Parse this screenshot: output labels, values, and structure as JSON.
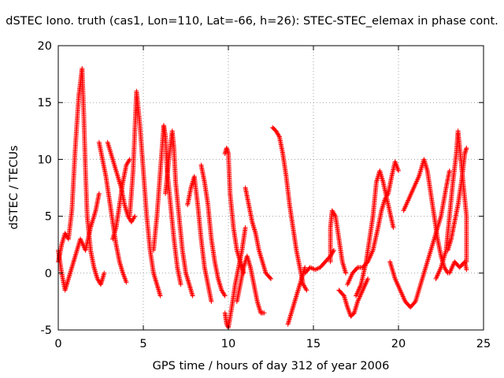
{
  "chart_data": {
    "type": "scatter",
    "title": "dSTEC Iono. truth (cas1, Lon=110, Lat=-66, h=26): STEC-STEC_elemax in phase cont.",
    "xlabel": "GPS time / hours of day 312 of year 2006",
    "ylabel": "dSTEC  / TECUs",
    "xlim": [
      0,
      25
    ],
    "ylim": [
      -5,
      20
    ],
    "xticks": [
      0,
      5,
      10,
      15,
      20,
      25
    ],
    "yticks": [
      -5,
      0,
      5,
      10,
      15,
      20
    ],
    "grid": true,
    "marker": "+",
    "colors": {
      "series": "#ff0000",
      "grid": "#a0a0a0",
      "axes": "#000000"
    },
    "series": [
      {
        "arcs": [
          [
            [
              0.0,
              1.0
            ],
            [
              0.2,
              2.5
            ],
            [
              0.4,
              3.5
            ],
            [
              0.6,
              3.0
            ],
            [
              0.8,
              5.5
            ],
            [
              1.0,
              11.0
            ],
            [
              1.2,
              15.5
            ],
            [
              1.4,
              18.0
            ],
            [
              1.5,
              14.0
            ],
            [
              1.6,
              9.0
            ],
            [
              1.7,
              5.0
            ],
            [
              1.9,
              2.0
            ],
            [
              2.1,
              0.5
            ],
            [
              2.3,
              -0.5
            ],
            [
              2.5,
              -1.0
            ],
            [
              2.7,
              0.0
            ]
          ],
          [
            [
              0.0,
              2.0
            ],
            [
              0.2,
              0.0
            ],
            [
              0.4,
              -1.5
            ],
            [
              0.6,
              -0.5
            ],
            [
              0.8,
              0.5
            ],
            [
              1.0,
              1.5
            ],
            [
              1.3,
              3.0
            ],
            [
              1.6,
              2.0
            ],
            [
              1.9,
              4.0
            ],
            [
              2.2,
              5.5
            ],
            [
              2.4,
              7.0
            ]
          ],
          [
            [
              2.4,
              11.5
            ],
            [
              2.6,
              10.0
            ],
            [
              2.8,
              8.5
            ],
            [
              3.0,
              6.5
            ],
            [
              3.2,
              4.5
            ],
            [
              3.4,
              2.5
            ],
            [
              3.6,
              1.0
            ],
            [
              3.8,
              0.0
            ],
            [
              4.0,
              -0.8
            ]
          ],
          [
            [
              2.9,
              11.5
            ],
            [
              3.2,
              10.0
            ],
            [
              3.5,
              8.5
            ],
            [
              3.7,
              7.5
            ],
            [
              3.9,
              6.0
            ],
            [
              4.1,
              5.0
            ],
            [
              4.3,
              4.5
            ],
            [
              4.5,
              5.0
            ]
          ],
          [
            [
              3.2,
              3.0
            ],
            [
              3.4,
              4.0
            ],
            [
              3.6,
              6.0
            ],
            [
              3.8,
              8.0
            ],
            [
              4.0,
              9.5
            ],
            [
              4.2,
              10.0
            ]
          ],
          [
            [
              4.2,
              5.0
            ],
            [
              4.4,
              9.0
            ],
            [
              4.6,
              16.0
            ],
            [
              4.8,
              13.0
            ],
            [
              5.0,
              9.0
            ],
            [
              5.2,
              5.0
            ],
            [
              5.4,
              2.0
            ],
            [
              5.6,
              0.0
            ],
            [
              5.8,
              -1.0
            ],
            [
              6.0,
              -2.0
            ]
          ],
          [
            [
              5.6,
              2.0
            ],
            [
              5.8,
              5.0
            ],
            [
              6.0,
              9.0
            ],
            [
              6.2,
              13.0
            ],
            [
              6.3,
              12.0
            ],
            [
              6.4,
              9.0
            ],
            [
              6.6,
              6.0
            ],
            [
              6.8,
              3.0
            ],
            [
              7.0,
              0.5
            ],
            [
              7.2,
              -1.0
            ]
          ],
          [
            [
              6.3,
              7.0
            ],
            [
              6.5,
              10.0
            ],
            [
              6.7,
              12.5
            ],
            [
              6.8,
              11.0
            ],
            [
              6.9,
              8.0
            ],
            [
              7.1,
              5.0
            ],
            [
              7.3,
              2.0
            ],
            [
              7.5,
              0.0
            ],
            [
              7.7,
              -1.0
            ],
            [
              7.9,
              -2.0
            ]
          ],
          [
            [
              7.6,
              6.0
            ],
            [
              7.8,
              7.5
            ],
            [
              8.0,
              8.5
            ],
            [
              8.2,
              6.0
            ],
            [
              8.4,
              3.0
            ],
            [
              8.6,
              0.5
            ],
            [
              8.8,
              -1.0
            ],
            [
              9.0,
              -2.5
            ]
          ],
          [
            [
              8.4,
              9.5
            ],
            [
              8.6,
              8.0
            ],
            [
              8.8,
              6.0
            ],
            [
              9.0,
              3.0
            ],
            [
              9.2,
              1.0
            ],
            [
              9.4,
              -0.5
            ],
            [
              9.6,
              -1.5
            ],
            [
              9.8,
              -2.0
            ]
          ],
          [
            [
              9.8,
              -3.5
            ],
            [
              9.9,
              -4.5
            ],
            [
              10.0,
              -4.8
            ],
            [
              10.2,
              -3.0
            ],
            [
              10.4,
              -1.0
            ],
            [
              10.6,
              0.5
            ],
            [
              10.8,
              2.0
            ],
            [
              11.0,
              4.0
            ]
          ],
          [
            [
              9.8,
              10.5
            ],
            [
              9.9,
              11.0
            ],
            [
              10.0,
              10.5
            ],
            [
              10.1,
              7.0
            ],
            [
              10.3,
              4.0
            ],
            [
              10.5,
              2.0
            ],
            [
              10.7,
              1.0
            ],
            [
              10.9,
              0.0
            ]
          ],
          [
            [
              10.5,
              -2.5
            ],
            [
              10.7,
              -1.0
            ],
            [
              10.9,
              0.5
            ],
            [
              11.1,
              1.5
            ],
            [
              11.3,
              0.5
            ],
            [
              11.5,
              -1.0
            ],
            [
              11.7,
              -2.5
            ],
            [
              11.9,
              -3.5
            ],
            [
              12.1,
              -3.5
            ]
          ],
          [
            [
              11.0,
              7.5
            ],
            [
              11.2,
              6.0
            ],
            [
              11.4,
              4.5
            ],
            [
              11.6,
              3.5
            ],
            [
              11.8,
              2.0
            ],
            [
              12.0,
              1.0
            ],
            [
              12.2,
              0.0
            ],
            [
              12.5,
              -0.5
            ]
          ],
          [
            [
              12.6,
              12.8
            ],
            [
              12.8,
              12.5
            ],
            [
              13.0,
              12.0
            ],
            [
              13.2,
              10.5
            ],
            [
              13.4,
              8.5
            ],
            [
              13.6,
              6.0
            ],
            [
              13.8,
              4.0
            ],
            [
              14.0,
              2.0
            ],
            [
              14.2,
              0.5
            ],
            [
              14.4,
              -1.0
            ],
            [
              14.6,
              -1.5
            ]
          ],
          [
            [
              13.5,
              -4.5
            ],
            [
              13.7,
              -3.5
            ],
            [
              13.9,
              -2.5
            ],
            [
              14.1,
              -1.5
            ],
            [
              14.3,
              -0.5
            ],
            [
              14.5,
              0.5
            ]
          ],
          [
            [
              14.5,
              0.0
            ],
            [
              14.8,
              0.5
            ],
            [
              15.1,
              0.3
            ],
            [
              15.4,
              0.5
            ],
            [
              15.7,
              1.0
            ],
            [
              16.0,
              1.5
            ],
            [
              16.2,
              2.0
            ]
          ],
          [
            [
              16.0,
              1.0
            ],
            [
              16.0,
              4.0
            ],
            [
              16.1,
              5.5
            ],
            [
              16.3,
              5.0
            ],
            [
              16.5,
              3.0
            ],
            [
              16.7,
              1.0
            ],
            [
              16.9,
              0.0
            ]
          ],
          [
            [
              16.5,
              -1.5
            ],
            [
              16.8,
              -2.0
            ],
            [
              17.0,
              -3.0
            ],
            [
              17.2,
              -3.8
            ],
            [
              17.4,
              -3.5
            ],
            [
              17.6,
              -2.5
            ],
            [
              17.9,
              -1.5
            ],
            [
              18.2,
              -0.5
            ]
          ],
          [
            [
              17.0,
              -1.0
            ],
            [
              17.3,
              0.0
            ],
            [
              17.6,
              0.5
            ],
            [
              17.9,
              0.5
            ],
            [
              18.2,
              1.0
            ],
            [
              18.5,
              2.0
            ],
            [
              18.8,
              4.0
            ],
            [
              19.0,
              5.5
            ],
            [
              19.2,
              6.5
            ],
            [
              19.4,
              7.0
            ],
            [
              19.6,
              8.5
            ],
            [
              19.8,
              9.8
            ],
            [
              20.0,
              9.0
            ]
          ],
          [
            [
              17.5,
              -2.0
            ],
            [
              17.8,
              -1.0
            ],
            [
              18.1,
              1.0
            ],
            [
              18.3,
              3.0
            ],
            [
              18.5,
              5.0
            ],
            [
              18.7,
              8.0
            ],
            [
              18.9,
              9.0
            ],
            [
              19.1,
              8.0
            ],
            [
              19.4,
              6.0
            ],
            [
              19.7,
              4.0
            ]
          ],
          [
            [
              19.5,
              1.0
            ],
            [
              19.8,
              -0.5
            ],
            [
              20.1,
              -1.5
            ],
            [
              20.4,
              -2.5
            ],
            [
              20.7,
              -3.0
            ],
            [
              21.0,
              -2.5
            ],
            [
              21.3,
              -1.0
            ],
            [
              21.6,
              0.5
            ],
            [
              21.9,
              2.0
            ],
            [
              22.2,
              3.5
            ],
            [
              22.5,
              5.0
            ],
            [
              22.8,
              7.5
            ],
            [
              23.0,
              9.0
            ]
          ],
          [
            [
              20.3,
              5.5
            ],
            [
              20.6,
              6.5
            ],
            [
              20.9,
              7.5
            ],
            [
              21.2,
              8.5
            ],
            [
              21.5,
              10.0
            ],
            [
              21.7,
              9.0
            ],
            [
              21.9,
              7.0
            ],
            [
              22.1,
              5.0
            ],
            [
              22.3,
              3.0
            ],
            [
              22.5,
              1.5
            ],
            [
              22.7,
              0.5
            ],
            [
              22.9,
              0.0
            ]
          ],
          [
            [
              22.2,
              -0.5
            ],
            [
              22.5,
              0.5
            ],
            [
              22.8,
              2.0
            ],
            [
              23.0,
              5.0
            ],
            [
              23.2,
              8.0
            ],
            [
              23.4,
              10.5
            ],
            [
              23.5,
              12.5
            ],
            [
              23.6,
              11.0
            ],
            [
              23.8,
              8.0
            ],
            [
              24.0,
              5.0
            ],
            [
              24.0,
              1.0
            ]
          ],
          [
            [
              22.9,
              2.0
            ],
            [
              23.1,
              3.0
            ],
            [
              23.3,
              4.5
            ],
            [
              23.5,
              6.0
            ],
            [
              23.7,
              8.0
            ],
            [
              23.9,
              10.5
            ],
            [
              24.0,
              11.0
            ]
          ],
          [
            [
              23.0,
              0.0
            ],
            [
              23.3,
              1.0
            ],
            [
              23.6,
              0.5
            ],
            [
              23.9,
              1.0
            ],
            [
              24.0,
              0.3
            ]
          ]
        ]
      }
    ]
  }
}
